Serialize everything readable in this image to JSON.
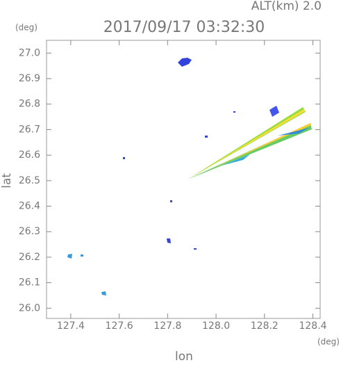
{
  "chart_data": {
    "type": "map",
    "title": "2017/09/17 03:32:30",
    "subtitle": "ALT(km) 2.0",
    "y_unit": "(deg)",
    "x_unit": "(deg)",
    "ylabel": "lat",
    "xlabel": "lon",
    "xlim": [
      127.3,
      128.43
    ],
    "ylim": [
      25.96,
      27.05
    ],
    "xticks": [
      127.4,
      127.6,
      127.8,
      {
        "value": 128.0,
        "label": "128.0"
      },
      128.2,
      128.4
    ],
    "yticks": [
      {
        "value": 26.0,
        "label": "26.0"
      },
      26.1,
      26.2,
      26.3,
      26.4,
      26.5,
      26.6,
      26.7,
      26.8,
      26.9,
      {
        "value": 27.0,
        "label": "27.0"
      }
    ]
  }
}
